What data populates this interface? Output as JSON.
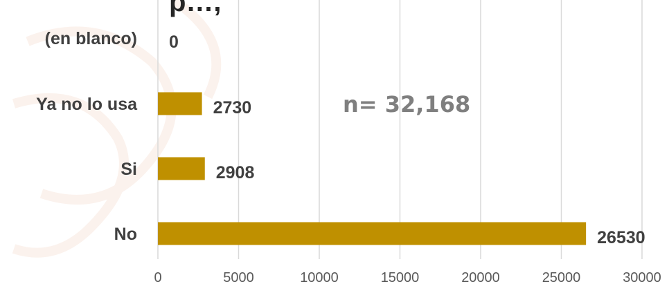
{
  "title_fragment": "p…,",
  "annotation": "n= 32,168",
  "chart_data": {
    "type": "bar",
    "orientation": "horizontal",
    "categories": [
      "(en blanco)",
      "Ya no lo usa",
      "Si",
      "No"
    ],
    "values": [
      0,
      2730,
      2908,
      26530
    ],
    "xlim": [
      0,
      30000
    ],
    "xticks": [
      0,
      5000,
      10000,
      15000,
      20000,
      25000,
      30000
    ],
    "xtick_labels": [
      "0",
      "5000",
      "10000",
      "15000",
      "20000",
      "25000",
      "30000"
    ],
    "grid": "vertical",
    "legend": "none",
    "bar_color": "#BF9000",
    "data_labels": true
  }
}
